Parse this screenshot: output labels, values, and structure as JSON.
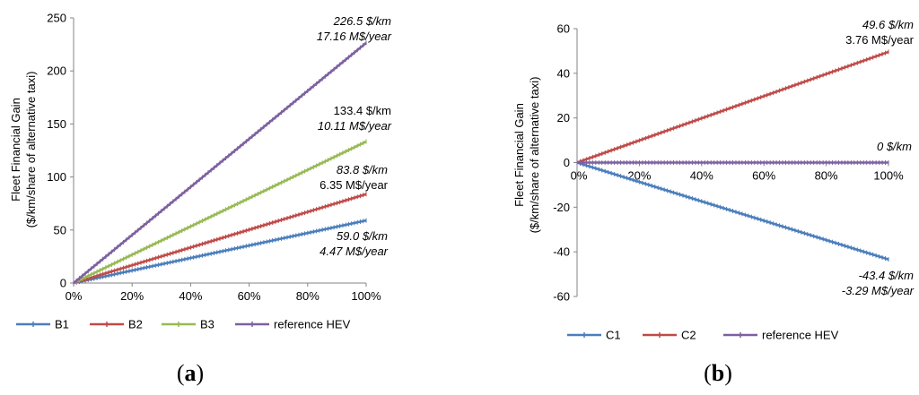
{
  "chart_data": [
    {
      "type": "line",
      "panel_label": {
        "open": "(",
        "letter": "a",
        "close": ")"
      },
      "ylabel": "Fleet Financial Gain",
      "ylabel2": "($/km/share of alternative taxi)",
      "xlim": [
        0,
        100
      ],
      "ylim": [
        0,
        250
      ],
      "xticks": [
        0,
        20,
        40,
        60,
        80,
        100
      ],
      "xtick_labels": [
        "0%",
        "20%",
        "40%",
        "60%",
        "80%",
        "100%"
      ],
      "yticks": [
        0,
        50,
        100,
        150,
        200,
        250
      ],
      "ytick_labels": [
        "0",
        "50",
        "100",
        "150",
        "200",
        "250"
      ],
      "series": [
        {
          "name": "B1",
          "color": "#4a7ebb",
          "x": [
            0,
            100
          ],
          "y": [
            0,
            59.0
          ],
          "annotation": [
            "59.0 $/km",
            "4.47 M$/year"
          ],
          "ann_italic": [
            true,
            true
          ]
        },
        {
          "name": "B2",
          "color": "#be4b48",
          "x": [
            0,
            100
          ],
          "y": [
            0,
            83.8
          ],
          "annotation": [
            "83.8 $/km",
            "6.35 M$/year"
          ],
          "ann_italic": [
            true,
            false
          ]
        },
        {
          "name": "B3",
          "color": "#98b954",
          "x": [
            0,
            100
          ],
          "y": [
            0,
            133.4
          ],
          "annotation": [
            "133.4 $/km",
            "10.11 M$/year"
          ],
          "ann_italic": [
            false,
            true
          ]
        },
        {
          "name": "reference HEV",
          "color": "#7d60a0",
          "x": [
            0,
            100
          ],
          "y": [
            0,
            226.5
          ],
          "annotation": [
            "226.5 $/km",
            "17.16 M$/year"
          ],
          "ann_italic": [
            true,
            true
          ]
        }
      ]
    },
    {
      "type": "line",
      "panel_label": {
        "open": "(",
        "letter": "b",
        "close": ")"
      },
      "ylabel": "Fleet Financial Gain",
      "ylabel2": "($/km/share of alternative taxi)",
      "xlim": [
        0,
        100
      ],
      "ylim": [
        -60,
        60
      ],
      "xticks": [
        0,
        20,
        40,
        60,
        80,
        100
      ],
      "xtick_labels": [
        "0%",
        "20%",
        "40%",
        "60%",
        "80%",
        "100%"
      ],
      "yticks": [
        -60,
        -40,
        -20,
        0,
        20,
        40,
        60
      ],
      "ytick_labels": [
        "-60",
        "-40",
        "-20",
        "0",
        "20",
        "40",
        "60"
      ],
      "series": [
        {
          "name": "C1",
          "color": "#4a7ebb",
          "x": [
            0,
            100
          ],
          "y": [
            0,
            -43.4
          ],
          "annotation": [
            "-43.4 $/km",
            "-3.29 M$/year"
          ],
          "ann_italic": [
            true,
            true
          ]
        },
        {
          "name": "C2",
          "color": "#be4b48",
          "x": [
            0,
            100
          ],
          "y": [
            0,
            49.6
          ],
          "annotation": [
            "49.6 $/km",
            "3.76 M$/year"
          ],
          "ann_italic": [
            true,
            false
          ]
        },
        {
          "name": "reference HEV",
          "color": "#7d60a0",
          "x": [
            0,
            100
          ],
          "y": [
            0,
            0
          ],
          "annotation": [
            "0 $/km"
          ],
          "ann_italic": [
            true
          ]
        }
      ]
    }
  ]
}
